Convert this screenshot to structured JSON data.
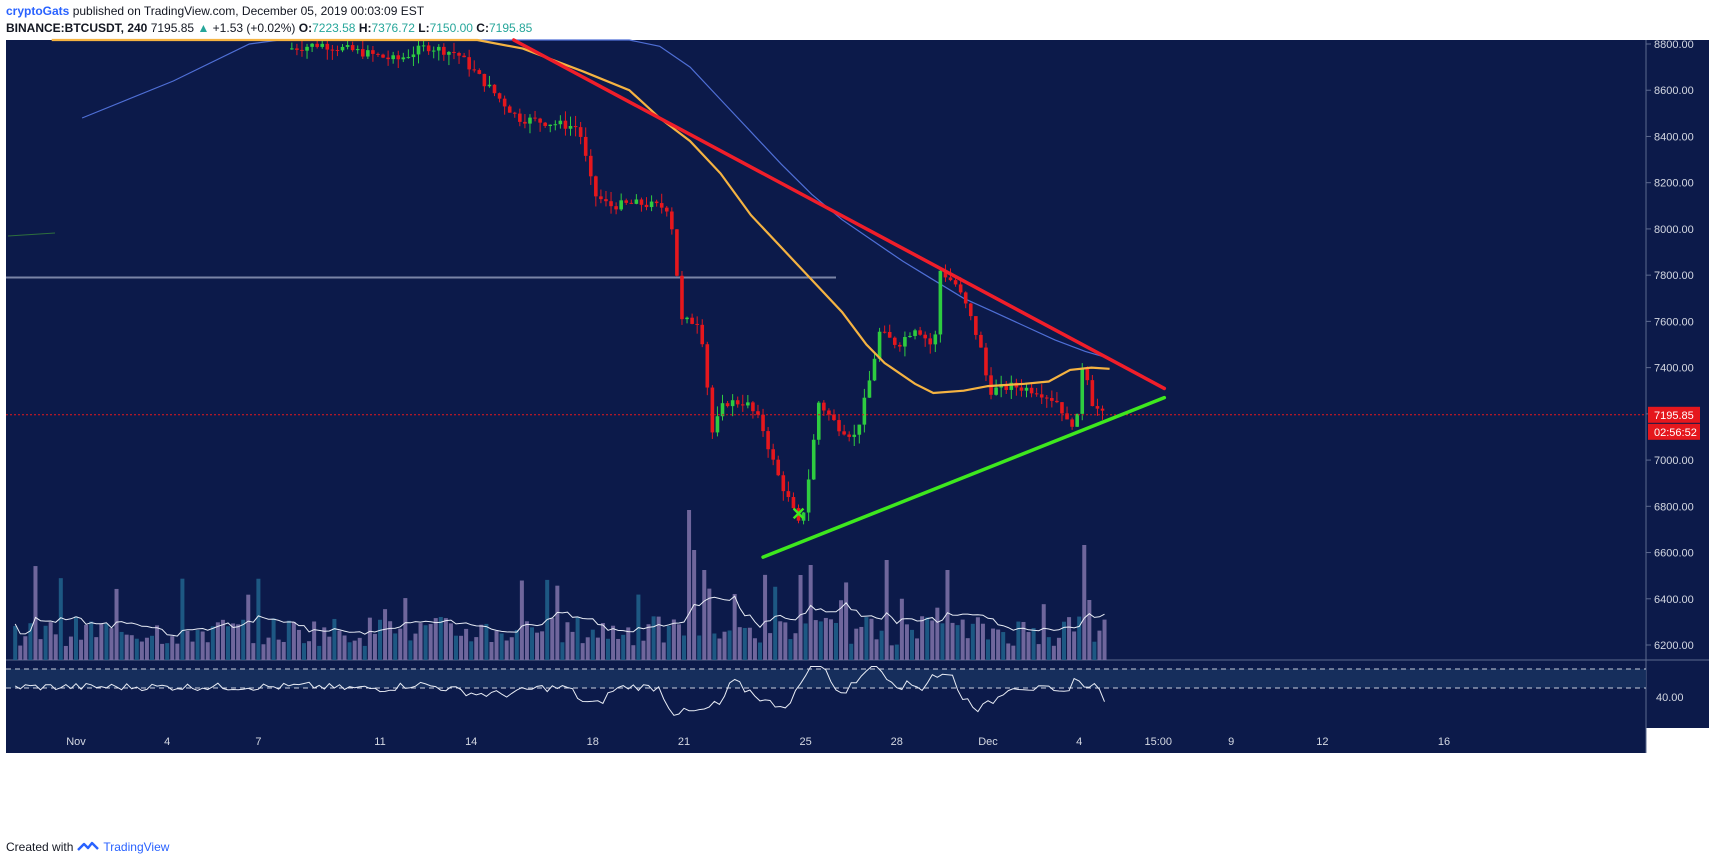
{
  "header": {
    "publisher": "cryptoGats",
    "published_text": "published on TradingView.com, December 05, 2019 00:03:09 EST",
    "symbol": "BINANCE:BTCUSDT, 240",
    "last": "7195.85",
    "change": "+1.53 (+0.02%)",
    "open_label": "O:",
    "open": "7223.58",
    "high_label": "H:",
    "high": "7376.72",
    "low_label": "L:",
    "low": "7150.00",
    "close_label": "C:",
    "close": "7195.85"
  },
  "footer": {
    "created_with": "Created with",
    "brand": "TradingView"
  },
  "colors": {
    "background": "#0c1a4a",
    "up": "#2ecc40",
    "down": "#e5171d",
    "resistance": "#f01e2a",
    "support": "#3ee81e",
    "ma_fast": "#f5b342",
    "ma_slow": "#4f6fd6",
    "price_label": "#e5171d"
  },
  "chart_data": {
    "type": "candlestick",
    "y_axis": {
      "min": 6100,
      "max": 8840,
      "ticks": [
        8800,
        8600,
        8400,
        8200,
        8000,
        7800,
        7600,
        7400,
        7200,
        7000,
        6800,
        6600,
        6400,
        6200
      ]
    },
    "x_axis": {
      "labels": [
        {
          "text": "Nov",
          "t": 0.8
        },
        {
          "text": "4",
          "t": 3.8
        },
        {
          "text": "7",
          "t": 6.8
        },
        {
          "text": "11",
          "t": 10.8
        },
        {
          "text": "14",
          "t": 13.8
        },
        {
          "text": "18",
          "t": 17.8
        },
        {
          "text": "21",
          "t": 20.8
        },
        {
          "text": "25",
          "t": 24.8
        },
        {
          "text": "28",
          "t": 27.8
        },
        {
          "text": "Dec",
          "t": 30.8
        },
        {
          "text": "4",
          "t": 33.8
        },
        {
          "text": "15:00",
          "t": 36.4
        },
        {
          "text": "9",
          "t": 38.8
        },
        {
          "text": "12",
          "t": 41.8
        },
        {
          "text": "16",
          "t": 45.8
        }
      ]
    },
    "last_price": "7195.85",
    "countdown": "02:56:52",
    "last_price_value": 7195.85,
    "price_points": [
      {
        "t": 8.0,
        "v": 8780
      },
      {
        "t": 9.0,
        "v": 8800
      },
      {
        "t": 10.5,
        "v": 8760
      },
      {
        "t": 11.5,
        "v": 8730
      },
      {
        "t": 12.5,
        "v": 8790
      },
      {
        "t": 13.5,
        "v": 8760
      },
      {
        "t": 14.5,
        "v": 8620
      },
      {
        "t": 15.5,
        "v": 8480
      },
      {
        "t": 16.5,
        "v": 8460
      },
      {
        "t": 17.5,
        "v": 8440
      },
      {
        "t": 18.0,
        "v": 8150
      },
      {
        "t": 18.5,
        "v": 8100
      },
      {
        "t": 19.5,
        "v": 8110
      },
      {
        "t": 20.5,
        "v": 8090
      },
      {
        "t": 20.9,
        "v": 7600
      },
      {
        "t": 21.5,
        "v": 7600
      },
      {
        "t": 21.9,
        "v": 7120
      },
      {
        "t": 22.3,
        "v": 7250
      },
      {
        "t": 23.0,
        "v": 7250
      },
      {
        "t": 23.5,
        "v": 7160
      },
      {
        "t": 24.0,
        "v": 6950
      },
      {
        "t": 24.5,
        "v": 6800
      },
      {
        "t": 24.8,
        "v": 6700
      },
      {
        "t": 25.1,
        "v": 6950
      },
      {
        "t": 25.4,
        "v": 7250
      },
      {
        "t": 26.0,
        "v": 7150
      },
      {
        "t": 26.6,
        "v": 7100
      },
      {
        "t": 27.0,
        "v": 7300
      },
      {
        "t": 27.4,
        "v": 7550
      },
      {
        "t": 28.0,
        "v": 7500
      },
      {
        "t": 28.6,
        "v": 7580
      },
      {
        "t": 29.2,
        "v": 7480
      },
      {
        "t": 29.4,
        "v": 7820
      },
      {
        "t": 29.9,
        "v": 7760
      },
      {
        "t": 30.3,
        "v": 7650
      },
      {
        "t": 30.7,
        "v": 7500
      },
      {
        "t": 31.0,
        "v": 7300
      },
      {
        "t": 31.8,
        "v": 7320
      },
      {
        "t": 32.6,
        "v": 7300
      },
      {
        "t": 33.3,
        "v": 7250
      },
      {
        "t": 33.6,
        "v": 7150
      },
      {
        "t": 33.9,
        "v": 7180
      },
      {
        "t": 34.1,
        "v": 7450
      },
      {
        "t": 34.4,
        "v": 7250
      },
      {
        "t": 34.7,
        "v": 7195.85
      }
    ],
    "ma_fast": [
      {
        "t": -2.0,
        "v": 8620
      },
      {
        "t": 0.0,
        "v": 8820
      },
      {
        "t": 14.0,
        "v": 8820
      },
      {
        "t": 15.5,
        "v": 8780
      },
      {
        "t": 17.5,
        "v": 8680
      },
      {
        "t": 19.0,
        "v": 8600
      },
      {
        "t": 20.0,
        "v": 8480
      },
      {
        "t": 21.0,
        "v": 8380
      },
      {
        "t": 22.0,
        "v": 8240
      },
      {
        "t": 23.0,
        "v": 8060
      },
      {
        "t": 24.0,
        "v": 7920
      },
      {
        "t": 25.0,
        "v": 7780
      },
      {
        "t": 26.0,
        "v": 7640
      },
      {
        "t": 26.8,
        "v": 7500
      },
      {
        "t": 27.4,
        "v": 7420
      },
      {
        "t": 28.4,
        "v": 7330
      },
      {
        "t": 29.0,
        "v": 7290
      },
      {
        "t": 30.0,
        "v": 7300
      },
      {
        "t": 30.8,
        "v": 7320
      },
      {
        "t": 32.0,
        "v": 7330
      },
      {
        "t": 32.8,
        "v": 7340
      },
      {
        "t": 33.5,
        "v": 7390
      },
      {
        "t": 34.2,
        "v": 7400
      },
      {
        "t": 34.8,
        "v": 7395
      }
    ],
    "ma_slow": [
      {
        "t": -2.0,
        "v": 8350
      },
      {
        "t": 1.0,
        "v": 8480
      },
      {
        "t": 4.0,
        "v": 8640
      },
      {
        "t": 6.5,
        "v": 8800
      },
      {
        "t": 7.5,
        "v": 8860
      },
      {
        "t": 19.0,
        "v": 8860
      },
      {
        "t": 20.0,
        "v": 8790
      },
      {
        "t": 21.0,
        "v": 8700
      },
      {
        "t": 22.0,
        "v": 8560
      },
      {
        "t": 23.0,
        "v": 8420
      },
      {
        "t": 24.0,
        "v": 8280
      },
      {
        "t": 25.0,
        "v": 8150
      },
      {
        "t": 26.0,
        "v": 8040
      },
      {
        "t": 27.0,
        "v": 7950
      },
      {
        "t": 28.0,
        "v": 7860
      },
      {
        "t": 29.0,
        "v": 7780
      },
      {
        "t": 30.0,
        "v": 7700
      },
      {
        "t": 31.0,
        "v": 7640
      },
      {
        "t": 32.0,
        "v": 7580
      },
      {
        "t": 33.0,
        "v": 7520
      },
      {
        "t": 34.0,
        "v": 7470
      },
      {
        "t": 34.8,
        "v": 7440
      }
    ],
    "resistance_line": {
      "t1": 15.2,
      "v1": 8840,
      "t2": 36.6,
      "v2": 7310
    },
    "support_line": {
      "t1": 23.4,
      "v1": 6580,
      "t2": 36.6,
      "v2": 7270
    },
    "horizontal_line": {
      "t1": -2.0,
      "t2": 25.8,
      "v": 7790
    },
    "rsi": {
      "level_label": "40.00",
      "upper_level": 60,
      "lower_level": 40
    }
  }
}
